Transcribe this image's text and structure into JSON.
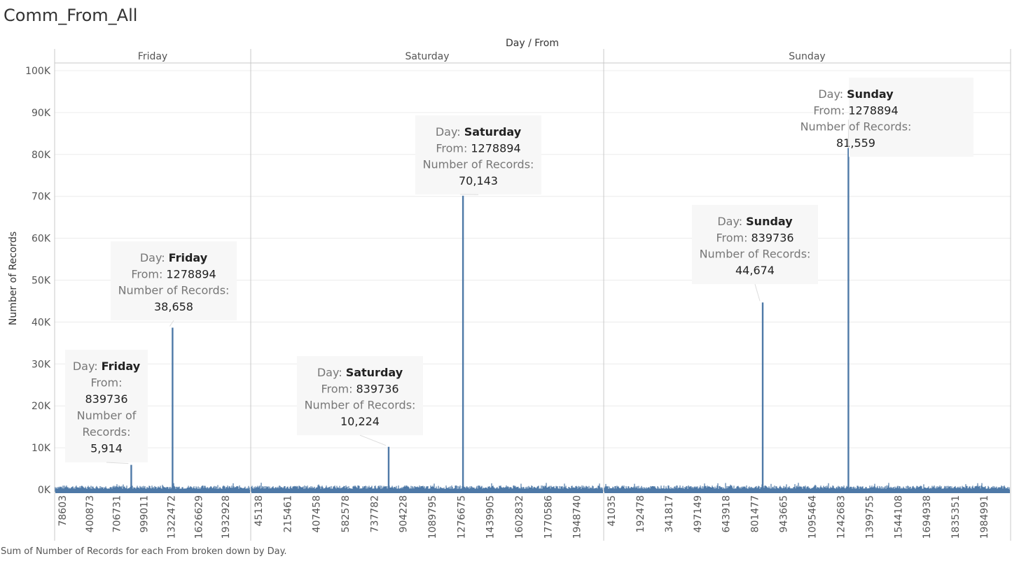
{
  "title": "Comm_From_All",
  "caption": "Sum of Number of Records for each From broken down by Day.",
  "chart_data": {
    "type": "bar",
    "column_header": "Day / From",
    "ylabel": "Number of Records",
    "ylim": [
      0,
      100000
    ],
    "y_ticks": [
      "0K",
      "10K",
      "20K",
      "30K",
      "40K",
      "50K",
      "60K",
      "70K",
      "80K",
      "90K",
      "100K"
    ],
    "bar_color": "#4e79a7",
    "tooltip_labels": {
      "day": "Day:",
      "from": "From:",
      "records": "Number of Records:"
    },
    "panels": [
      {
        "day": "Friday",
        "x_ticks": [
          "78603",
          "400873",
          "706731",
          "999011",
          "1322472",
          "1626629",
          "1932928"
        ],
        "x_range": [
          25000,
          2110000
        ],
        "highlights": [
          {
            "from": 839736,
            "value": 5914,
            "from_label": "839736",
            "value_label": "5,914"
          },
          {
            "from": 1278894,
            "value": 38658,
            "from_label": "1278894",
            "value_label": "38,658"
          }
        ]
      },
      {
        "day": "Saturday",
        "x_ticks": [
          "45138",
          "215461",
          "407458",
          "582578",
          "737782",
          "904228",
          "1089795",
          "1276675",
          "1439905",
          "1602832",
          "1770586",
          "1948740"
        ],
        "x_range": [
          25000,
          2110000
        ],
        "highlights": [
          {
            "from": 839736,
            "value": 10224,
            "from_label": "839736",
            "value_label": "10,224"
          },
          {
            "from": 1278894,
            "value": 70143,
            "from_label": "1278894",
            "value_label": "70,143"
          }
        ]
      },
      {
        "day": "Sunday",
        "x_ticks": [
          "41035",
          "192478",
          "341817",
          "497149",
          "643918",
          "801477",
          "943665",
          "1095464",
          "1242683",
          "1399755",
          "1544108",
          "1694938",
          "1835351",
          "1984991"
        ],
        "x_range": [
          25000,
          2110000
        ],
        "highlights": [
          {
            "from": 839736,
            "value": 44674,
            "from_label": "839736",
            "value_label": "44,674"
          },
          {
            "from": 1278894,
            "value": 81559,
            "from_label": "1278894",
            "value_label": "81,559"
          }
        ]
      }
    ]
  }
}
